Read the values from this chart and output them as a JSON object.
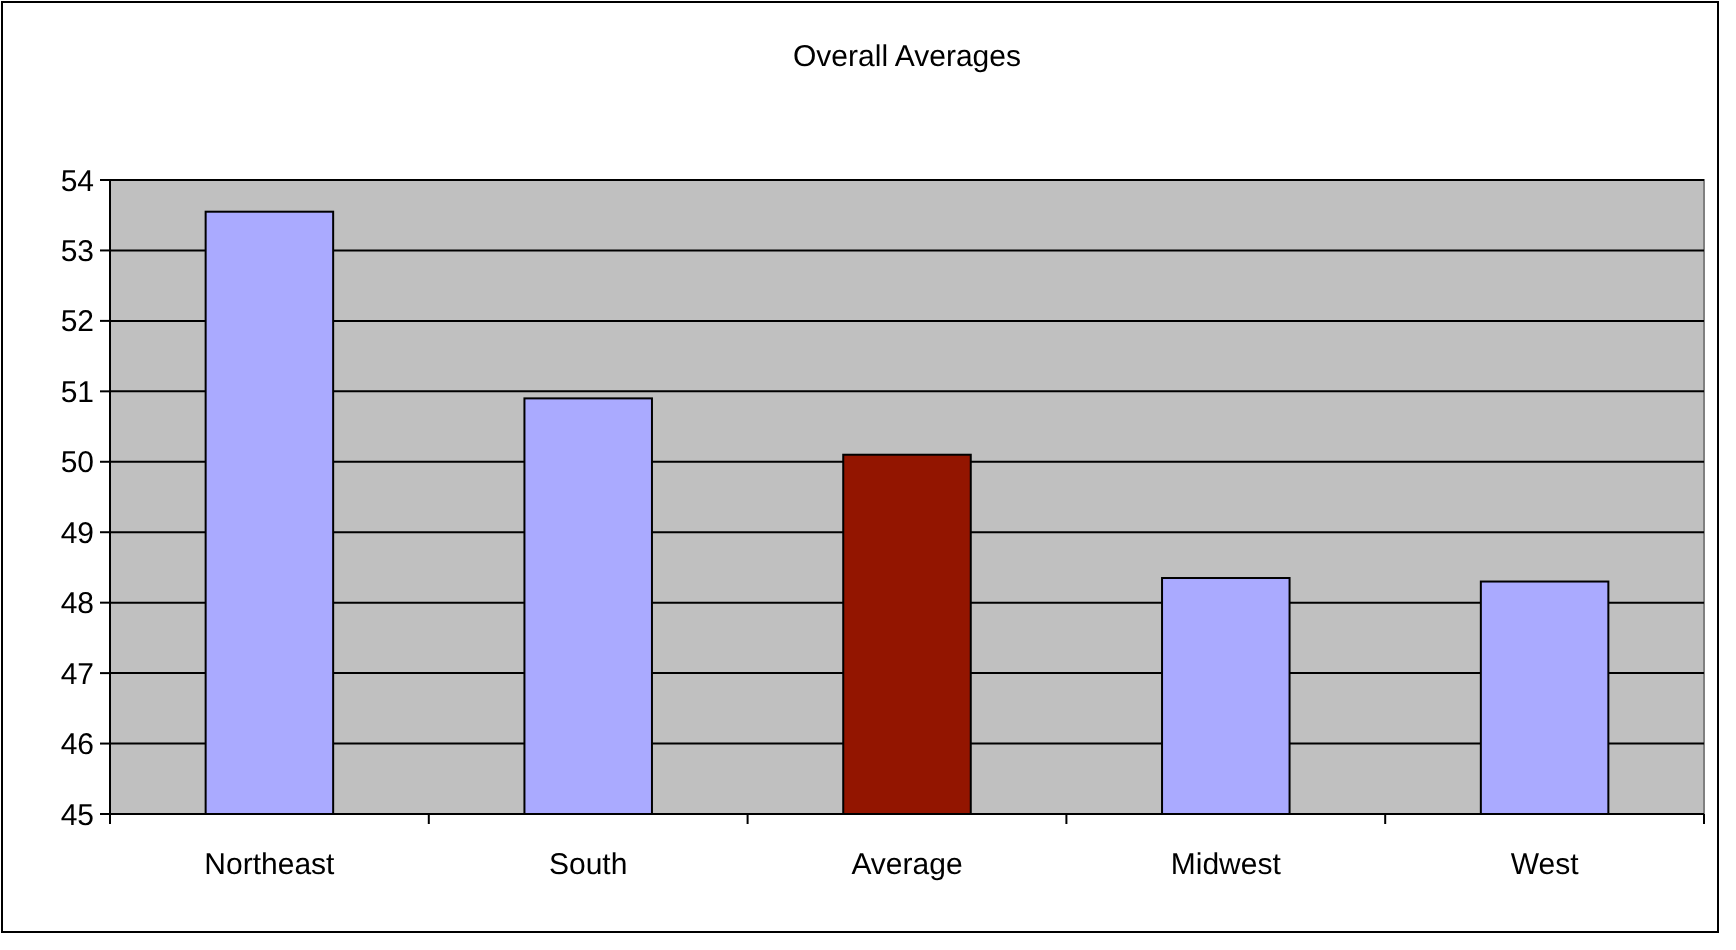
{
  "chart_data": {
    "type": "bar",
    "title": "Overall Averages",
    "categories": [
      "Northeast",
      "South",
      "Average",
      "Midwest",
      "West"
    ],
    "values": [
      53.55,
      50.9,
      50.1,
      48.35,
      48.3
    ],
    "colors": [
      "#aaaaff",
      "#aaaaff",
      "#931500",
      "#aaaaff",
      "#aaaaff"
    ],
    "ylim": [
      45,
      54
    ],
    "yticks": [
      45,
      46,
      47,
      48,
      49,
      50,
      51,
      52,
      53,
      54
    ],
    "grid": "y"
  }
}
